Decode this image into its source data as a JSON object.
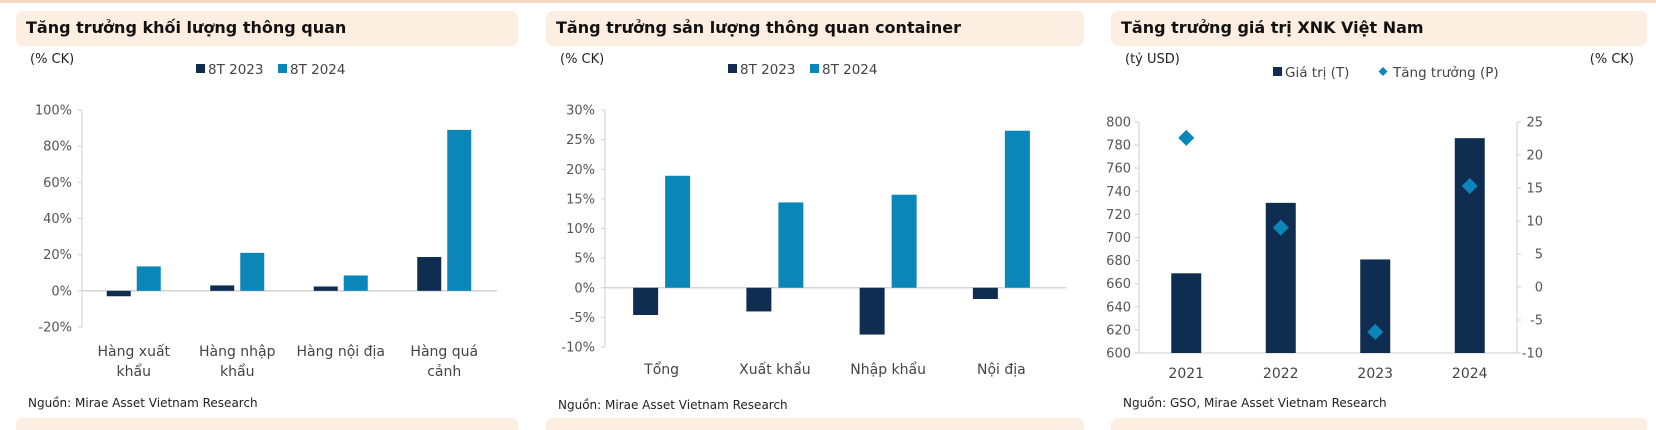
{
  "colors": {
    "series_dark": "#0f2d50",
    "series_blue": "#0a86b8",
    "axis": "#cfcfcf"
  },
  "chart_data": [
    {
      "type": "bar",
      "title": "Tăng trưởng khối lượng thông quan",
      "unit_label": "(% CK)",
      "categories": [
        [
          "Hàng xuất",
          "khẩu"
        ],
        [
          "Hàng nhập",
          "khẩu"
        ],
        [
          "Hàng nội địa"
        ],
        [
          "Hàng quá",
          "cảnh"
        ]
      ],
      "series": [
        {
          "name": "8T 2023",
          "values": [
            -3,
            3,
            2.4,
            18.7
          ]
        },
        {
          "name": "8T 2024",
          "values": [
            13.5,
            21,
            8.5,
            89
          ]
        }
      ],
      "ylim": [
        -20,
        100
      ],
      "yticks": [
        -20,
        0,
        20,
        40,
        60,
        80,
        100
      ],
      "ytick_labels": [
        "-20%",
        "0%",
        "20%",
        "40%",
        "60%",
        "80%",
        "100%"
      ],
      "legend": "top-center",
      "grid": false,
      "source": "Nguồn: Mirae Asset Vietnam Research"
    },
    {
      "type": "bar",
      "title": "Tăng trưởng sản lượng thông quan container",
      "unit_label": "(% CK)",
      "categories": [
        [
          "Tổng"
        ],
        [
          "Xuất khẩu"
        ],
        [
          "Nhập khẩu"
        ],
        [
          "Nội địa"
        ]
      ],
      "series": [
        {
          "name": "8T 2023",
          "values": [
            -4.6,
            -4.0,
            -7.9,
            -1.9
          ]
        },
        {
          "name": "8T 2024",
          "values": [
            18.9,
            14.4,
            15.7,
            26.5
          ]
        }
      ],
      "ylim": [
        -10,
        30
      ],
      "yticks": [
        -10,
        -5,
        0,
        5,
        10,
        15,
        20,
        25,
        30
      ],
      "ytick_labels": [
        "-10%",
        "-5%",
        "0%",
        "5%",
        "10%",
        "15%",
        "20%",
        "25%",
        "30%"
      ],
      "legend": "top-center",
      "grid": false,
      "source": "Nguồn: Mirae Asset Vietnam Research"
    },
    {
      "type": "bar+scatter",
      "title": "Tăng trưởng giá trị XNK Việt Nam",
      "unit_label_left": "(tỷ USD)",
      "unit_label_right": "(% CK)",
      "categories": [
        "2021",
        "2022",
        "2023",
        "2024"
      ],
      "series": [
        {
          "name": "Giá trị (T)",
          "axis": "left",
          "kind": "bar",
          "values": [
            669,
            730,
            681,
            786
          ]
        },
        {
          "name": "Tăng trưởng (P)",
          "axis": "right",
          "kind": "diamond",
          "values": [
            22.6,
            9.0,
            -6.8,
            15.3
          ]
        }
      ],
      "ylim_left": [
        600,
        800
      ],
      "yticks_left": [
        600,
        620,
        640,
        660,
        680,
        700,
        720,
        740,
        760,
        780,
        800
      ],
      "ylim_right": [
        -10,
        25
      ],
      "yticks_right": [
        -10,
        -5,
        0,
        5,
        10,
        15,
        20,
        25
      ],
      "legend": "top-center",
      "grid": false,
      "source": "Nguồn: GSO, Mirae Asset Vietnam Research"
    }
  ]
}
